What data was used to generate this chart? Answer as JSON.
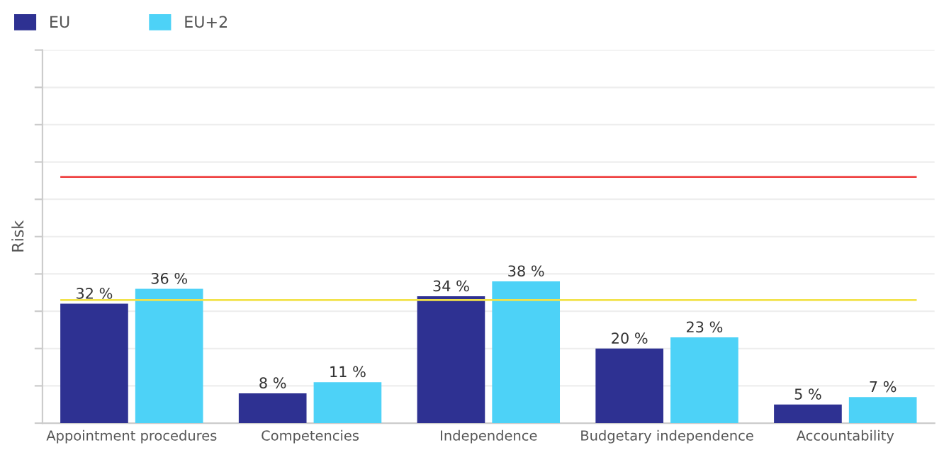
{
  "chart_data": {
    "type": "bar",
    "ylabel": "Risk",
    "categories": [
      "Appointment procedures",
      "Competencies",
      "Independence",
      "Budgetary independence",
      "Accountability"
    ],
    "series": [
      {
        "name": "EU",
        "color": "#2e3192",
        "values": [
          32,
          8,
          34,
          20,
          5
        ],
        "value_labels": [
          "32 %",
          "8 %",
          "34 %",
          "20 %",
          "5 %"
        ]
      },
      {
        "name": "EU+2",
        "color": "#4dd2f7",
        "values": [
          36,
          11,
          38,
          23,
          7
        ],
        "value_labels": [
          "36 %",
          "11 %",
          "38 %",
          "23 %",
          "7 %"
        ]
      }
    ],
    "ylim": [
      0,
      100
    ],
    "yticks": [
      {
        "value": 0,
        "label": null
      },
      {
        "value": 10,
        "label": null
      },
      {
        "value": 20,
        "label": null
      },
      {
        "value": 30,
        "label": null
      },
      {
        "value": 40,
        "label": null
      },
      {
        "value": 50,
        "label": null
      },
      {
        "value": 60,
        "label": null
      },
      {
        "value": 70,
        "label": null
      },
      {
        "value": 80,
        "label": null
      },
      {
        "value": 90,
        "label": null
      },
      {
        "value": 100,
        "label": null
      }
    ],
    "tick_labels": "x",
    "ref_lines": [
      {
        "axis": "y",
        "value": 66,
        "color": "#ef4444"
      },
      {
        "axis": "y",
        "value": 33,
        "color": "#f2e24a"
      }
    ],
    "grid": "y",
    "legend": "top left"
  }
}
